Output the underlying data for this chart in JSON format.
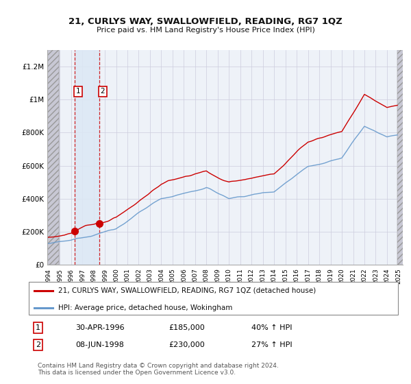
{
  "title": "21, CURLYS WAY, SWALLOWFIELD, READING, RG7 1QZ",
  "subtitle": "Price paid vs. HM Land Registry's House Price Index (HPI)",
  "legend_line1": "21, CURLYS WAY, SWALLOWFIELD, READING, RG7 1QZ (detached house)",
  "legend_line2": "HPI: Average price, detached house, Wokingham",
  "transaction1_date": "30-APR-1996",
  "transaction1_price": 185000,
  "transaction1_hpi": "40% ↑ HPI",
  "transaction2_date": "08-JUN-1998",
  "transaction2_price": 230000,
  "transaction2_hpi": "27% ↑ HPI",
  "footnote": "Contains HM Land Registry data © Crown copyright and database right 2024.\nThis data is licensed under the Open Government Licence v3.0.",
  "red_line_color": "#cc0000",
  "blue_line_color": "#6699cc",
  "background_color": "#ffffff",
  "plot_bg_color": "#eef2f8",
  "grid_color": "#ccccdd",
  "ylim": [
    0,
    1300000
  ],
  "yticks": [
    0,
    200000,
    400000,
    600000,
    800000,
    1000000,
    1200000
  ],
  "ytick_labels": [
    "£0",
    "£200K",
    "£400K",
    "£600K",
    "£800K",
    "£1M",
    "£1.2M"
  ],
  "t1_x": 1996.33,
  "t2_x": 1998.5,
  "xtick_years": [
    1994,
    1995,
    1996,
    1997,
    1998,
    1999,
    2000,
    2001,
    2002,
    2003,
    2004,
    2005,
    2006,
    2007,
    2008,
    2009,
    2010,
    2011,
    2012,
    2013,
    2014,
    2015,
    2016,
    2017,
    2018,
    2019,
    2020,
    2021,
    2022,
    2023,
    2024,
    2025
  ]
}
